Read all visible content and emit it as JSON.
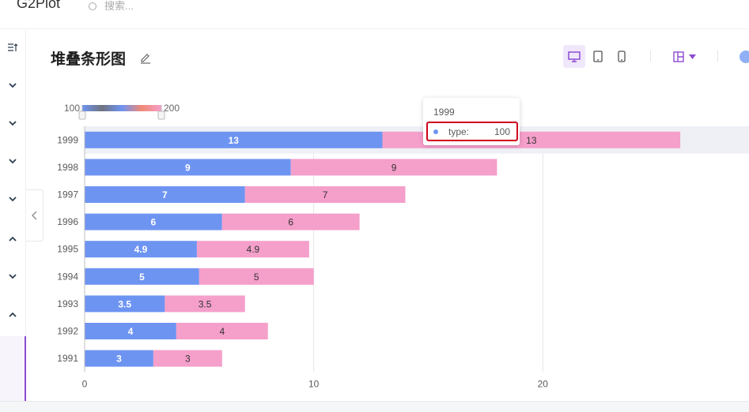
{
  "header": {
    "logo": "G2Plot",
    "search_placeholder": "搜索..."
  },
  "page": {
    "title": "堆叠条形图"
  },
  "toolbar": {
    "devices": [
      "desktop-icon",
      "tablet-icon",
      "mobile-icon"
    ],
    "active_device": "desktop-icon"
  },
  "legend": {
    "min_label": "100",
    "max_label": "200",
    "gradient": [
      "#6e94f2",
      "#6f7380",
      "#6e94f2",
      "#f08976",
      "#f59fcb"
    ]
  },
  "tooltip": {
    "title": "1999",
    "name": "type:",
    "value": "100"
  },
  "colors": {
    "series_a": "#6e94f2",
    "series_b": "#f59fcb",
    "highlight": "#eef0f6"
  },
  "chart_data": {
    "type": "bar",
    "orientation": "horizontal",
    "stacked": true,
    "categories": [
      "1999",
      "1998",
      "1997",
      "1996",
      "1995",
      "1994",
      "1993",
      "1992",
      "1991"
    ],
    "series": [
      {
        "values": [
          13,
          9,
          7,
          6,
          4.9,
          5,
          3.5,
          4,
          3
        ]
      },
      {
        "values": [
          13,
          9,
          7,
          6,
          4.9,
          5,
          3.5,
          4,
          3
        ]
      }
    ],
    "data_labels": [
      [
        "13",
        "9",
        "7",
        "6",
        "4.9",
        "5",
        "3.5",
        "4",
        "3"
      ],
      [
        "13",
        "9",
        "7",
        "6",
        "4.9",
        "5",
        "3.5",
        "4",
        "3"
      ]
    ],
    "xlim": [
      0,
      29
    ],
    "xticks": [
      "0",
      "10",
      "20"
    ],
    "highlighted_category": "1999",
    "grid": true
  }
}
